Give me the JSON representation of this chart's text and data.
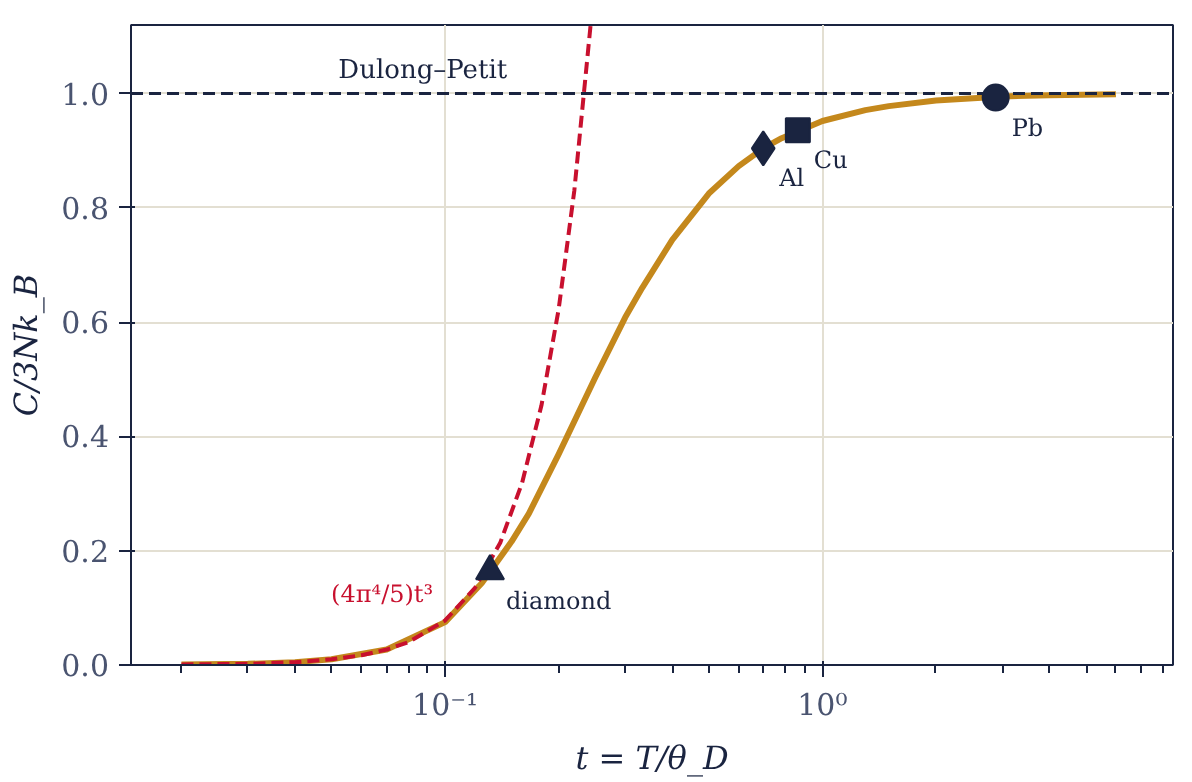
{
  "chart_data": {
    "type": "line",
    "xlabel": "t = T/θ_D",
    "ylabel": "C/3Nk_B",
    "log": "x",
    "grid": true,
    "xlim": [
      0.0147,
      8.5
    ],
    "ylim": [
      0,
      1.12
    ],
    "xticks": [
      {
        "value": 0.02,
        "label": null
      },
      {
        "value": 0.03,
        "label": null
      },
      {
        "value": 0.04,
        "label": null
      },
      {
        "value": 0.05,
        "label": null
      },
      {
        "value": 0.06,
        "label": null
      },
      {
        "value": 0.07,
        "label": null
      },
      {
        "value": 0.08,
        "label": null
      },
      {
        "value": 0.09,
        "label": null
      },
      {
        "value": 0.1,
        "label": "10⁻¹"
      },
      {
        "value": 0.2,
        "label": null
      },
      {
        "value": 0.3,
        "label": null
      },
      {
        "value": 0.4,
        "label": null
      },
      {
        "value": 0.5,
        "label": null
      },
      {
        "value": 0.6,
        "label": null
      },
      {
        "value": 0.7,
        "label": null
      },
      {
        "value": 0.8,
        "label": null
      },
      {
        "value": 0.9,
        "label": null
      },
      {
        "value": 1,
        "label": "10⁰"
      },
      {
        "value": 2,
        "label": null
      },
      {
        "value": 3,
        "label": null
      },
      {
        "value": 4,
        "label": null
      },
      {
        "value": 5,
        "label": null
      },
      {
        "value": 6,
        "label": null
      },
      {
        "value": 7,
        "label": null
      },
      {
        "value": 8,
        "label": null
      }
    ],
    "yticks": [
      {
        "value": 0,
        "label": "0.0"
      },
      {
        "value": 0.2,
        "label": "0.2"
      },
      {
        "value": 0.4,
        "label": "0.4"
      },
      {
        "value": 0.6,
        "label": "0.6"
      },
      {
        "value": 0.8,
        "label": "0.8"
      },
      {
        "value": 1,
        "label": "1.0"
      }
    ],
    "ref_lines": [
      {
        "axis": "y",
        "value": 1,
        "label": "Dulong–Petit",
        "color": "#1a2440",
        "line_style": "dashed"
      }
    ],
    "series": [
      {
        "color": "#c4881c",
        "line_style": "solid",
        "marker": "none",
        "x": [
          0.02,
          0.03,
          0.04,
          0.05,
          0.07,
          0.1,
          0.125,
          0.15,
          0.1667,
          0.2,
          0.25,
          0.3,
          0.333,
          0.4,
          0.5,
          0.6,
          0.7,
          0.78,
          1,
          1.3,
          1.5,
          2,
          3,
          4,
          6
        ],
        "values": [
          0.001,
          0.002,
          0.005,
          0.01,
          0.027,
          0.075,
          0.143,
          0.216,
          0.265,
          0.369,
          0.503,
          0.608,
          0.66,
          0.744,
          0.825,
          0.873,
          0.905,
          0.922,
          0.952,
          0.971,
          0.978,
          0.988,
          0.995,
          0.997,
          0.999
        ]
      },
      {
        "name": "(4π⁴/5)t³",
        "color": "#c8102e",
        "line_style": "dashed",
        "marker": "none",
        "x": [
          0.02,
          0.03,
          0.04,
          0.05,
          0.06,
          0.07,
          0.08,
          0.1,
          0.12,
          0.14,
          0.16,
          0.18,
          0.2,
          0.22,
          0.243
        ],
        "values": [
          0.001,
          0.002,
          0.005,
          0.01,
          0.017,
          0.027,
          0.04,
          0.078,
          0.135,
          0.214,
          0.319,
          0.454,
          0.623,
          0.83,
          1.12
        ]
      },
      {
        "type": "scatter",
        "name": "diamond",
        "color": "#1a2440",
        "marker": "triangle",
        "x": [
          0.1315
        ],
        "values": [
          0.164
        ]
      },
      {
        "type": "scatter",
        "name": "Al",
        "color": "#1a2440",
        "marker": "diamond",
        "x": [
          0.697
        ],
        "values": [
          0.904
        ]
      },
      {
        "type": "scatter",
        "name": "Cu",
        "color": "#1a2440",
        "marker": "square",
        "x": [
          0.861
        ],
        "values": [
          0.936
        ]
      },
      {
        "type": "scatter",
        "name": "Pb",
        "color": "#1a2440",
        "marker": "circle",
        "x": [
          2.88
        ],
        "values": [
          0.993
        ]
      }
    ]
  }
}
